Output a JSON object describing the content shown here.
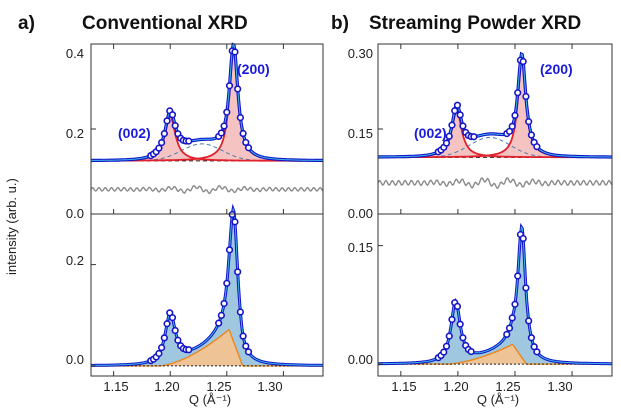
{
  "panels": {
    "a": {
      "letter": "a)",
      "title": "Conventional XRD"
    },
    "b": {
      "letter": "b)",
      "title": "Streaming Powder XRD"
    }
  },
  "peak_labels": {
    "p002": "(002)",
    "p200": "(200)"
  },
  "axes": {
    "ylabel": "intensity (arb. u.)",
    "xlabel": "Q (Å⁻¹)",
    "xticks": [
      "1.15",
      "1.20",
      "1.25",
      "1.30"
    ],
    "xlim": [
      1.13,
      1.335
    ]
  },
  "colors": {
    "data": "#1414c8",
    "fit": "#39b6e8",
    "subpeak": "#e0202a",
    "fill_red": "#f4b8b8",
    "fill_blue": "#7fb4d4",
    "fill_orange": "#f6c28e",
    "orange_line": "#e8871e",
    "residual": "#8a8a8a"
  },
  "chart_data": [
    {
      "id": "a_top",
      "type": "line",
      "ylim": [
        0,
        0.4
      ],
      "yticks": [
        "0.0",
        "0.2",
        "0.4"
      ],
      "ytick_values": [
        0,
        0.2,
        0.4
      ],
      "baseline": 0.125,
      "residual_level": 0.058,
      "peaks": [
        {
          "label": "(002)",
          "center": 1.2,
          "height": 0.105,
          "width": 0.0055
        },
        {
          "label": "(200)",
          "center": 1.256,
          "height": 0.262,
          "width": 0.0045
        }
      ],
      "broad": {
        "center": 1.228,
        "height": 0.04,
        "width": 0.018
      }
    },
    {
      "id": "b_top",
      "type": "line",
      "ylim": [
        0,
        0.3
      ],
      "yticks": [
        "0.00",
        "0.15",
        "0.30"
      ],
      "ytick_values": [
        0,
        0.15,
        0.3
      ],
      "baseline": 0.1,
      "residual_level": 0.055,
      "peaks": [
        {
          "label": "(002)",
          "center": 1.199,
          "height": 0.082,
          "width": 0.0052
        },
        {
          "label": "(200)",
          "center": 1.256,
          "height": 0.172,
          "width": 0.0042
        }
      ],
      "broad": {
        "center": 1.228,
        "height": 0.035,
        "width": 0.018
      }
    },
    {
      "id": "a_bottom",
      "type": "area",
      "ylim": [
        -0.02,
        0.3
      ],
      "yticks": [
        "0.0",
        "0.2"
      ],
      "ytick_values": [
        0,
        0.2
      ],
      "peaks": [
        {
          "center": 1.2,
          "height": 0.1,
          "width": 0.0055
        },
        {
          "center": 1.256,
          "height": 0.26,
          "width": 0.0045
        }
      ],
      "shoulder": {
        "start": 1.2,
        "end": 1.252,
        "height": 0.072
      }
    },
    {
      "id": "b_bottom",
      "type": "area",
      "ylim": [
        -0.015,
        0.19
      ],
      "yticks": [
        "0.00",
        "0.15"
      ],
      "ytick_values": [
        0,
        0.15
      ],
      "peaks": [
        {
          "center": 1.198,
          "height": 0.078,
          "width": 0.005
        },
        {
          "center": 1.256,
          "height": 0.165,
          "width": 0.0042
        }
      ],
      "shoulder": {
        "start": 1.2,
        "end": 1.248,
        "height": 0.025
      }
    }
  ]
}
